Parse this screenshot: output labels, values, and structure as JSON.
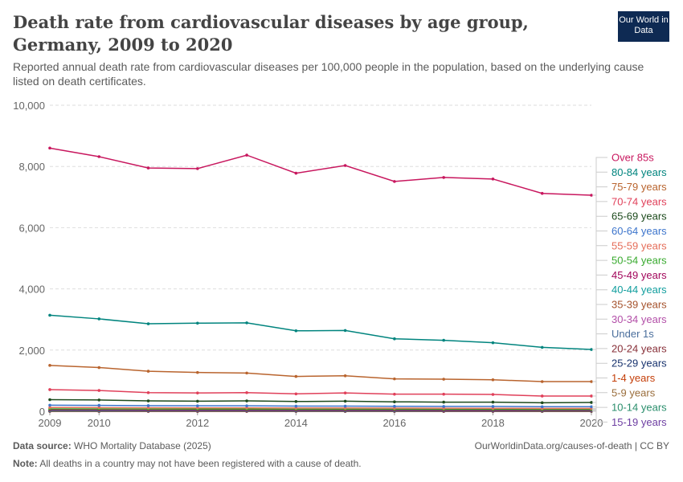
{
  "header": {
    "title": "Death rate from cardiovascular diseases by age group, Germany, 2009 to 2020",
    "subtitle": "Reported annual death rate from cardiovascular diseases per 100,000 people in the population, based on the underlying cause listed on death certificates.",
    "logo": "Our World in Data"
  },
  "footer": {
    "source_label": "Data source:",
    "source": "WHO Mortality Database (2025)",
    "url": "OurWorldinData.org/causes-of-death | CC BY",
    "note_label": "Note:",
    "note": "All deaths in a country may not have been registered with a cause of death."
  },
  "chart_data": {
    "type": "line",
    "title": "Death rate from cardiovascular diseases by age group, Germany, 2009 to 2020",
    "x": [
      2009,
      2010,
      2011,
      2012,
      2013,
      2014,
      2015,
      2016,
      2017,
      2018,
      2019,
      2020
    ],
    "xticks": [
      "2009",
      "2010",
      "2012",
      "2014",
      "2016",
      "2018",
      "2020"
    ],
    "yticks": [
      "0",
      "2,000",
      "4,000",
      "6,000",
      "8,000",
      "10,000"
    ],
    "ylim": [
      0,
      10000
    ],
    "grid": true,
    "legend": "right",
    "series": [
      {
        "name": "Over 85s",
        "color": "#c8175e",
        "values": [
          8600,
          8320,
          7950,
          7930,
          8370,
          7780,
          8030,
          7510,
          7640,
          7590,
          7120,
          7060
        ]
      },
      {
        "name": "80-84 years",
        "color": "#00847e",
        "values": [
          3140,
          3020,
          2860,
          2880,
          2890,
          2630,
          2640,
          2370,
          2320,
          2240,
          2090,
          2020
        ]
      },
      {
        "name": "75-79 years",
        "color": "#b9642e",
        "values": [
          1500,
          1430,
          1310,
          1270,
          1250,
          1140,
          1160,
          1060,
          1050,
          1030,
          970,
          970
        ]
      },
      {
        "name": "70-74 years",
        "color": "#e0405a",
        "values": [
          710,
          680,
          610,
          600,
          610,
          570,
          600,
          560,
          560,
          550,
          500,
          500
        ]
      },
      {
        "name": "65-69 years",
        "color": "#1c4a1c",
        "values": [
          380,
          370,
          340,
          330,
          340,
          320,
          330,
          310,
          300,
          300,
          280,
          290
        ]
      },
      {
        "name": "60-64 years",
        "color": "#3d75cc",
        "values": [
          200,
          195,
          185,
          180,
          180,
          170,
          170,
          165,
          160,
          160,
          150,
          150
        ]
      },
      {
        "name": "55-59 years",
        "color": "#e56e5a",
        "values": [
          125,
          120,
          115,
          112,
          112,
          108,
          108,
          104,
          102,
          100,
          96,
          95
        ]
      },
      {
        "name": "50-54 years",
        "color": "#38aa2e",
        "values": [
          80,
          78,
          74,
          72,
          72,
          70,
          70,
          68,
          66,
          66,
          62,
          62
        ]
      },
      {
        "name": "45-49 years",
        "color": "#a2065b",
        "values": [
          45,
          43,
          40,
          38,
          38,
          36,
          36,
          35,
          34,
          34,
          32,
          32
        ]
      },
      {
        "name": "40-44 years",
        "color": "#119e9e",
        "values": [
          22,
          21,
          20,
          19,
          19,
          18,
          18,
          18,
          17,
          17,
          16,
          16
        ]
      },
      {
        "name": "35-39 years",
        "color": "#a5522c",
        "values": [
          11,
          11,
          10,
          10,
          10,
          9,
          9,
          9,
          9,
          9,
          8,
          8
        ]
      },
      {
        "name": "30-34 years",
        "color": "#b34fa8",
        "values": [
          6,
          6,
          6,
          5,
          5,
          5,
          5,
          5,
          5,
          5,
          5,
          5
        ]
      },
      {
        "name": "Under 1s",
        "color": "#4a6e9c",
        "values": [
          10,
          10,
          9,
          9,
          9,
          8,
          8,
          8,
          8,
          8,
          7,
          7
        ]
      },
      {
        "name": "20-24 years",
        "color": "#883039",
        "values": [
          3,
          3,
          3,
          3,
          3,
          3,
          3,
          3,
          3,
          3,
          3,
          3
        ]
      },
      {
        "name": "25-29 years",
        "color": "#18336e",
        "values": [
          4,
          4,
          4,
          4,
          4,
          4,
          4,
          4,
          4,
          4,
          4,
          4
        ]
      },
      {
        "name": "1-4 years",
        "color": "#c43e08",
        "values": [
          1,
          1,
          1,
          1,
          1,
          1,
          1,
          1,
          1,
          1,
          1,
          1
        ]
      },
      {
        "name": "5-9 years",
        "color": "#9a6e3c",
        "values": [
          1,
          1,
          1,
          1,
          1,
          1,
          1,
          1,
          1,
          1,
          1,
          1
        ]
      },
      {
        "name": "10-14 years",
        "color": "#2a8e6c",
        "values": [
          1,
          1,
          1,
          1,
          1,
          1,
          1,
          1,
          1,
          1,
          1,
          1
        ]
      },
      {
        "name": "15-19 years",
        "color": "#6d3ea2",
        "values": [
          2,
          2,
          2,
          2,
          2,
          2,
          2,
          2,
          2,
          2,
          2,
          2
        ]
      }
    ]
  }
}
